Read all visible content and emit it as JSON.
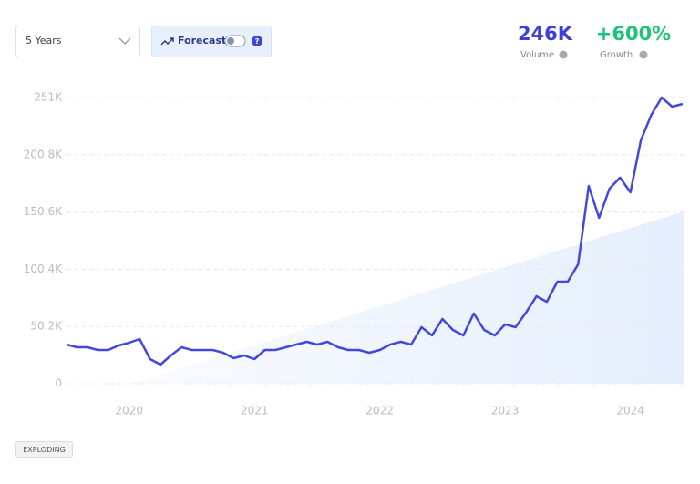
{
  "controls": {
    "range": "5 Years",
    "forecast": "Forecast"
  },
  "stats": [
    {
      "value": "246K",
      "label": "Volume"
    },
    {
      "value": "+600%",
      "label": "Growth"
    }
  ],
  "badge": "EXPLODING",
  "chart_data": {
    "type": "line",
    "color": "#4348dc",
    "grid": true,
    "x": [
      2019.5,
      2019.583,
      2019.667,
      2019.75,
      2019.833,
      2019.917,
      2020,
      2020.083,
      2020.167,
      2020.25,
      2020.333,
      2020.417,
      2020.5,
      2020.583,
      2020.667,
      2020.75,
      2020.833,
      2020.917,
      2021,
      2021.083,
      2021.167,
      2021.25,
      2021.333,
      2021.417,
      2021.5,
      2021.583,
      2021.667,
      2021.75,
      2021.833,
      2021.917,
      2022,
      2022.083,
      2022.167,
      2022.25,
      2022.333,
      2022.417,
      2022.5,
      2022.583,
      2022.667,
      2022.75,
      2022.833,
      2022.917,
      2023,
      2023.083,
      2023.167,
      2023.25,
      2023.333,
      2023.417,
      2023.5,
      2023.583,
      2023.667,
      2023.75,
      2023.833,
      2023.917,
      2024,
      2024.083,
      2024.167,
      2024.25,
      2024.333,
      2024.417
    ],
    "values": [
      34400,
      32000,
      32000,
      29600,
      29600,
      33600,
      36000,
      39200,
      21600,
      16800,
      24800,
      32000,
      29600,
      29600,
      29600,
      27200,
      22400,
      24800,
      21600,
      29600,
      29600,
      32000,
      34400,
      36800,
      34400,
      36800,
      32000,
      29600,
      29600,
      27200,
      29600,
      34400,
      36800,
      34400,
      49600,
      42400,
      56800,
      47200,
      42400,
      61600,
      47200,
      42400,
      52000,
      49600,
      62400,
      76700,
      71900,
      89500,
      89500,
      104700,
      173500,
      145500,
      171100,
      180700,
      167900,
      213400,
      235800,
      251000,
      243000,
      245400
    ],
    "xlim": [
      2019.5,
      2024.417
    ],
    "xticks": [
      2020,
      2021,
      2022,
      2023,
      2024
    ],
    "ylim": [
      0,
      251000
    ],
    "yticks": [
      0,
      {
        "value": 50200,
        "label": "50.2K"
      },
      {
        "value": 100400,
        "label": "100.4K"
      },
      {
        "value": 150600,
        "label": "150.6K"
      },
      {
        "value": 200800,
        "label": "200.8K"
      },
      {
        "value": 251000,
        "label": "251K"
      }
    ]
  }
}
